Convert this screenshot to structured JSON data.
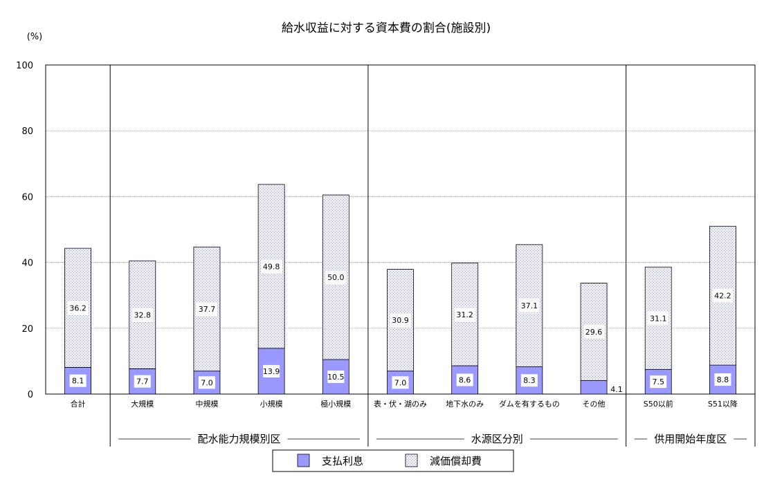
{
  "chart_data": {
    "type": "bar",
    "stacked": true,
    "title": "給水収益に対する資本費の割合(施設別)",
    "unit_label": "(%)",
    "ylim": [
      0,
      100
    ],
    "yticks": [
      "0",
      "20",
      "40",
      "60",
      "80",
      "100"
    ],
    "grid": true,
    "legend_position": "bottom",
    "categories": [
      "合計",
      "大規模",
      "中規模",
      "小規模",
      "極小規模",
      "表・伏・湖のみ",
      "地下水のみ",
      "ダムを有するもの",
      "その他",
      "S50以前",
      "S51以降"
    ],
    "series": [
      {
        "name": "支払利息",
        "color": "#9999ff",
        "values": [
          8.1,
          7.7,
          7.0,
          13.9,
          10.5,
          7.0,
          8.6,
          8.3,
          4.1,
          7.5,
          8.8
        ],
        "labels": [
          "8.1",
          "7.7",
          "7.0",
          "13.9",
          "10.5",
          "7.0",
          "8.6",
          "8.3",
          "4.1",
          "7.5",
          "8.8"
        ]
      },
      {
        "name": "減価償却費",
        "color": "#c8c8ff",
        "values": [
          36.2,
          32.8,
          37.7,
          49.8,
          50.0,
          30.9,
          31.2,
          37.1,
          29.6,
          31.1,
          42.2
        ],
        "labels": [
          "36.2",
          "32.8",
          "37.7",
          "49.8",
          "50.0",
          "30.9",
          "31.2",
          "37.1",
          "29.6",
          "31.1",
          "42.2"
        ]
      }
    ],
    "groups": [
      {
        "label": "配水能力規模別区",
        "start": 1,
        "end": 4
      },
      {
        "label": "水源区分別",
        "start": 5,
        "end": 8
      },
      {
        "label": "供用開始年度区",
        "start": 9,
        "end": 10
      }
    ]
  }
}
